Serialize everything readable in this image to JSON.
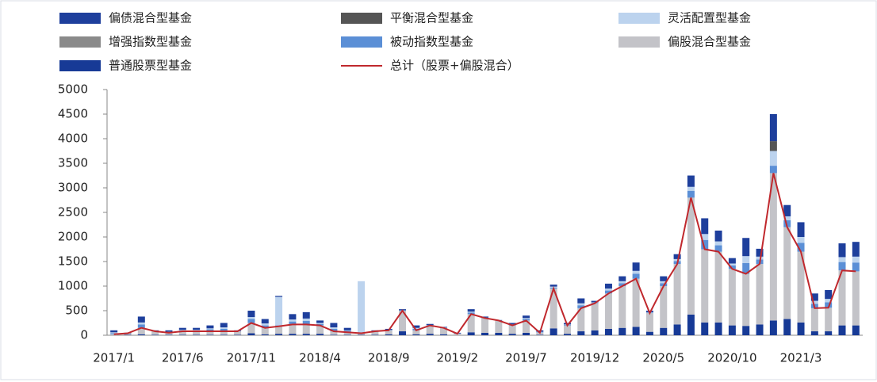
{
  "chart_data": {
    "type": "bar",
    "categories": [
      "2017/1",
      null,
      null,
      null,
      null,
      "2017/6",
      null,
      null,
      null,
      null,
      "2017/11",
      null,
      null,
      null,
      null,
      "2018/4",
      null,
      null,
      null,
      null,
      "2018/9",
      null,
      null,
      null,
      null,
      "2019/2",
      null,
      null,
      null,
      null,
      "2019/7",
      null,
      null,
      null,
      null,
      "2019/12",
      null,
      null,
      null,
      null,
      "2020/5",
      null,
      null,
      null,
      null,
      "2020/10",
      null,
      null,
      null,
      null,
      "2021/3",
      null,
      null,
      null,
      null
    ],
    "ylim": [
      0,
      5000
    ],
    "yticks": [
      0,
      500,
      1000,
      1500,
      2000,
      2500,
      3000,
      3500,
      4000,
      4500,
      5000
    ],
    "series": [
      {
        "name": "偏债混合型基金",
        "color": "#1e3f9c",
        "values": [
          40,
          10,
          120,
          10,
          30,
          40,
          40,
          60,
          90,
          10,
          130,
          90,
          20,
          110,
          130,
          50,
          90,
          50,
          0,
          10,
          20,
          20,
          50,
          20,
          10,
          10,
          50,
          20,
          10,
          30,
          50,
          30,
          40,
          30,
          100,
          30,
          100,
          100,
          170,
          30,
          100,
          100,
          230,
          320,
          220,
          110,
          370,
          160,
          550,
          230,
          300,
          150,
          180,
          280,
          300
        ]
      },
      {
        "name": "平衡混合型基金",
        "color": "#555555",
        "values": [
          0,
          0,
          0,
          0,
          0,
          0,
          0,
          0,
          0,
          0,
          0,
          0,
          0,
          0,
          0,
          0,
          0,
          0,
          0,
          0,
          0,
          0,
          0,
          0,
          0,
          0,
          0,
          0,
          0,
          0,
          0,
          0,
          0,
          0,
          0,
          0,
          0,
          0,
          0,
          0,
          0,
          0,
          0,
          0,
          0,
          0,
          0,
          0,
          200,
          0,
          0,
          0,
          0,
          0,
          0
        ]
      },
      {
        "name": "灵活配置型基金",
        "color": "#bcd3ee",
        "values": [
          20,
          0,
          40,
          0,
          10,
          10,
          10,
          20,
          30,
          0,
          40,
          40,
          580,
          40,
          50,
          20,
          30,
          10,
          1060,
          0,
          0,
          0,
          20,
          0,
          0,
          0,
          20,
          0,
          0,
          10,
          20,
          10,
          20,
          10,
          40,
          10,
          40,
          40,
          60,
          10,
          40,
          40,
          80,
          120,
          80,
          40,
          140,
          60,
          300,
          80,
          120,
          60,
          70,
          100,
          120
        ]
      },
      {
        "name": "增强指数型基金",
        "color": "#8a8a8a",
        "values": [
          0,
          0,
          0,
          0,
          0,
          0,
          0,
          0,
          0,
          0,
          0,
          0,
          0,
          0,
          0,
          0,
          0,
          0,
          0,
          0,
          0,
          0,
          0,
          0,
          0,
          0,
          0,
          0,
          0,
          0,
          0,
          0,
          0,
          0,
          0,
          0,
          0,
          0,
          0,
          0,
          0,
          0,
          0,
          0,
          0,
          0,
          0,
          0,
          0,
          0,
          0,
          0,
          0,
          0,
          0
        ]
      },
      {
        "name": "被动指数型基金",
        "color": "#5b8fd6",
        "values": [
          20,
          0,
          70,
          10,
          10,
          20,
          20,
          40,
          50,
          10,
          80,
          50,
          20,
          60,
          70,
          30,
          50,
          30,
          0,
          10,
          10,
          10,
          30,
          10,
          10,
          10,
          30,
          10,
          0,
          10,
          30,
          10,
          20,
          10,
          60,
          10,
          60,
          60,
          100,
          10,
          60,
          60,
          140,
          190,
          130,
          70,
          220,
          90,
          150,
          140,
          180,
          90,
          110,
          170,
          180
        ]
      },
      {
        "name": "偏股混合型基金",
        "color": "#c3c3c8",
        "values": [
          20,
          30,
          130,
          70,
          40,
          70,
          70,
          70,
          70,
          70,
          210,
          130,
          150,
          190,
          190,
          170,
          70,
          50,
          30,
          70,
          80,
          420,
          80,
          170,
          130,
          30,
          370,
          300,
          250,
          170,
          250,
          40,
          810,
          170,
          470,
          550,
          720,
          850,
          980,
          380,
          850,
          1230,
          2380,
          1490,
          1440,
          1150,
          1060,
          1230,
          3000,
          1870,
          1440,
          470,
          480,
          1120,
          1100
        ]
      },
      {
        "name": "普通股票型基金",
        "color": "#173a96",
        "values": [
          0,
          10,
          20,
          10,
          10,
          10,
          10,
          10,
          10,
          10,
          40,
          20,
          30,
          30,
          30,
          30,
          10,
          10,
          10,
          10,
          20,
          80,
          20,
          30,
          20,
          0,
          60,
          50,
          50,
          30,
          50,
          10,
          140,
          30,
          80,
          100,
          130,
          150,
          170,
          70,
          150,
          220,
          420,
          260,
          260,
          200,
          190,
          220,
          300,
          330,
          260,
          80,
          80,
          200,
          200
        ]
      },
      {
        "name": "总计（股票+偏股混合）",
        "color": "#c0282d",
        "type": "line",
        "values": [
          20,
          40,
          150,
          80,
          50,
          80,
          80,
          80,
          80,
          80,
          250,
          150,
          180,
          220,
          220,
          200,
          80,
          60,
          40,
          80,
          100,
          500,
          100,
          200,
          150,
          30,
          430,
          350,
          300,
          200,
          300,
          50,
          950,
          200,
          550,
          650,
          850,
          1000,
          1150,
          450,
          1000,
          1450,
          2800,
          1750,
          1700,
          1350,
          1250,
          1450,
          3300,
          2200,
          1700,
          550,
          560,
          1320,
          1300
        ]
      }
    ]
  }
}
